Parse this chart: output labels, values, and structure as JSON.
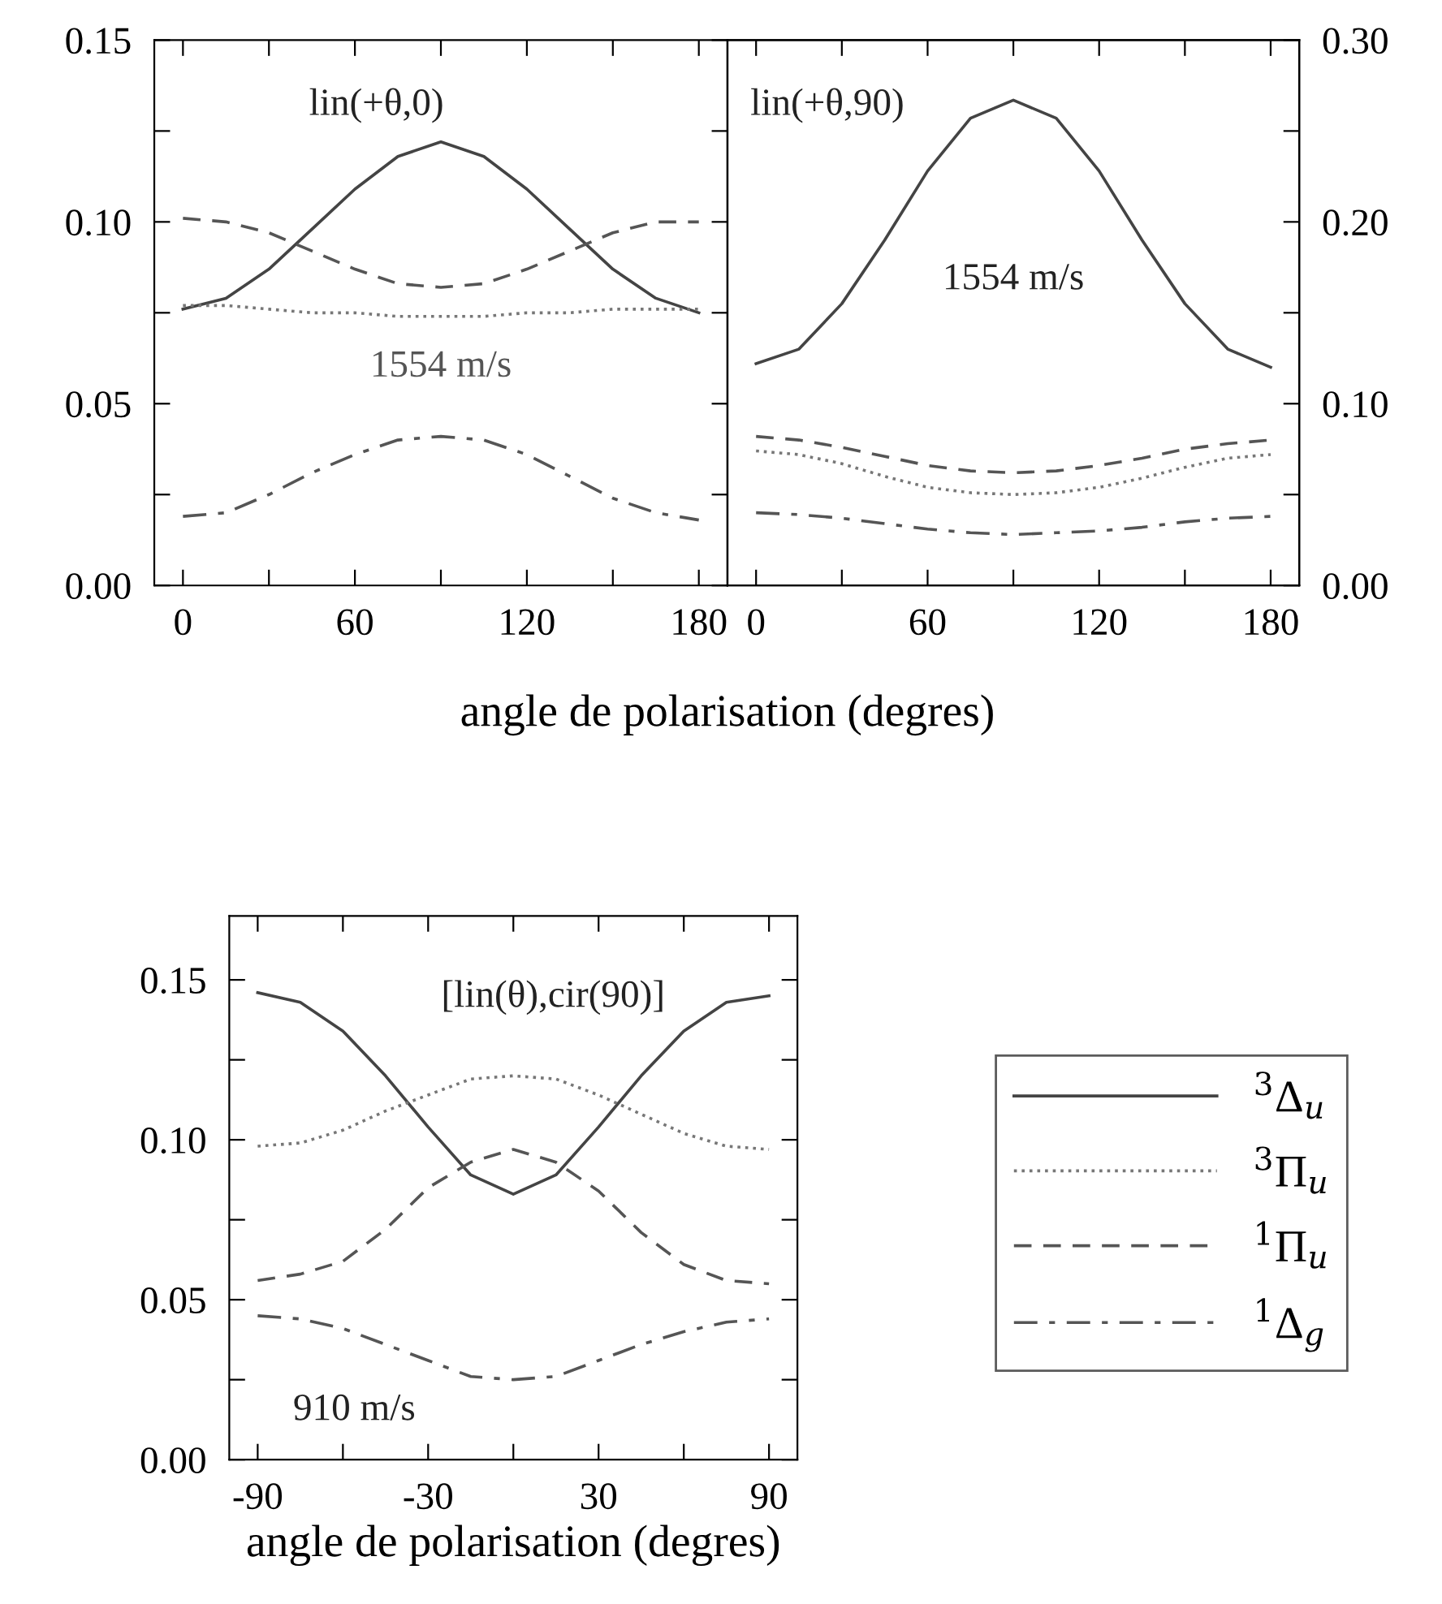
{
  "chart_data": [
    {
      "type": "line",
      "xlabel": "angle de polarisation (degres)",
      "annotations": [
        "lin(+θ,0)",
        "1554 m/s"
      ],
      "x": [
        0,
        15,
        30,
        45,
        60,
        75,
        90,
        105,
        120,
        135,
        150,
        165,
        180
      ],
      "xlim": [
        -10,
        190
      ],
      "xticks": [
        0,
        {
          "value": 30,
          "label": null
        },
        60,
        {
          "value": 90,
          "label": null
        },
        120,
        {
          "value": 150,
          "label": null
        },
        180
      ],
      "ylim": [
        0,
        0.15
      ],
      "yticks": [
        {
          "value": 0,
          "label": "0.00"
        },
        {
          "value": 0.025,
          "label": null
        },
        {
          "value": 0.05,
          "label": "0.05"
        },
        {
          "value": 0.075,
          "label": null
        },
        {
          "value": 0.1,
          "label": "0.10"
        },
        {
          "value": 0.125,
          "label": null
        },
        {
          "value": 0.15,
          "label": "0.15"
        }
      ],
      "series": [
        {
          "color": "#444444",
          "line_style": "solid",
          "values": [
            0.076,
            0.079,
            0.087,
            0.098,
            0.109,
            0.118,
            0.122,
            0.118,
            0.109,
            0.098,
            0.087,
            0.079,
            0.075
          ]
        },
        {
          "color": "#777777",
          "line_style": "dotted",
          "values": [
            0.077,
            0.077,
            0.076,
            0.075,
            0.075,
            0.074,
            0.074,
            0.074,
            0.075,
            0.075,
            0.076,
            0.076,
            0.076
          ]
        },
        {
          "color": "#555555",
          "line_style": "dashed",
          "values": [
            0.101,
            0.1,
            0.097,
            0.092,
            0.087,
            0.083,
            0.082,
            0.083,
            0.087,
            0.092,
            0.097,
            0.1,
            0.1
          ]
        },
        {
          "color": "#555555",
          "line_style": "dashdot",
          "values": [
            0.019,
            0.02,
            0.025,
            0.031,
            0.036,
            0.04,
            0.041,
            0.04,
            0.036,
            0.03,
            0.024,
            0.02,
            0.018
          ]
        }
      ]
    },
    {
      "type": "line",
      "annotations": [
        "lin(+θ,90)",
        "1554 m/s"
      ],
      "x": [
        0,
        15,
        30,
        45,
        60,
        75,
        90,
        105,
        120,
        135,
        150,
        165,
        180
      ],
      "xlim": [
        -10,
        190
      ],
      "xticks": [
        0,
        {
          "value": 30,
          "label": null
        },
        60,
        {
          "value": 90,
          "label": null
        },
        120,
        {
          "value": 150,
          "label": null
        },
        180
      ],
      "y2lim": [
        0,
        0.3
      ],
      "y2ticks": [
        {
          "value": 0,
          "label": "0.00"
        },
        {
          "value": 0.05,
          "label": null
        },
        {
          "value": 0.1,
          "label": "0.10"
        },
        {
          "value": 0.15,
          "label": null
        },
        {
          "value": 0.2,
          "label": "0.20"
        },
        {
          "value": 0.25,
          "label": null
        },
        {
          "value": 0.3,
          "label": "0.30"
        }
      ],
      "series": [
        {
          "color": "#444444",
          "line_style": "solid",
          "axis": "y2",
          "values": [
            0.122,
            0.13,
            0.155,
            0.19,
            0.228,
            0.257,
            0.267,
            0.257,
            0.228,
            0.19,
            0.155,
            0.13,
            0.12
          ]
        },
        {
          "color": "#777777",
          "line_style": "dotted",
          "axis": "y2",
          "values": [
            0.074,
            0.072,
            0.067,
            0.06,
            0.054,
            0.051,
            0.05,
            0.051,
            0.054,
            0.059,
            0.065,
            0.07,
            0.072
          ]
        },
        {
          "color": "#555555",
          "line_style": "dashed",
          "axis": "y2",
          "values": [
            0.082,
            0.08,
            0.076,
            0.071,
            0.066,
            0.063,
            0.062,
            0.063,
            0.066,
            0.07,
            0.075,
            0.078,
            0.08
          ]
        },
        {
          "color": "#555555",
          "line_style": "dashdot",
          "axis": "y2",
          "values": [
            0.04,
            0.039,
            0.037,
            0.034,
            0.031,
            0.029,
            0.028,
            0.029,
            0.03,
            0.032,
            0.035,
            0.037,
            0.038
          ]
        }
      ]
    },
    {
      "type": "line",
      "xlabel": "angle de polarisation (degres)",
      "annotations": [
        "[lin(θ),cir(90)]",
        "910 m/s"
      ],
      "legend": "right",
      "x": [
        -90,
        -75,
        -60,
        -45,
        -30,
        -15,
        0,
        15,
        30,
        45,
        60,
        75,
        90
      ],
      "xlim": [
        -100,
        100
      ],
      "xticks": [
        -90,
        {
          "value": -60,
          "label": null
        },
        -30,
        {
          "value": 0,
          "label": null
        },
        30,
        {
          "value": 60,
          "label": null
        },
        90
      ],
      "ylim": [
        0,
        0.17
      ],
      "yticks": [
        {
          "value": 0,
          "label": "0.00"
        },
        {
          "value": 0.025,
          "label": null
        },
        {
          "value": 0.05,
          "label": "0.05"
        },
        {
          "value": 0.075,
          "label": null
        },
        {
          "value": 0.1,
          "label": "0.10"
        },
        {
          "value": 0.125,
          "label": null
        },
        {
          "value": 0.15,
          "label": "0.15"
        }
      ],
      "series": [
        {
          "name": "$^{3}$Δ$_{u}$",
          "color": "#444444",
          "line_style": "solid",
          "values": [
            0.146,
            0.143,
            0.134,
            0.12,
            0.104,
            0.089,
            0.083,
            0.089,
            0.104,
            0.12,
            0.134,
            0.143,
            0.145
          ]
        },
        {
          "name": "$^{3}$Π$_{u}$",
          "color": "#777777",
          "line_style": "dotted",
          "values": [
            0.098,
            0.099,
            0.103,
            0.109,
            0.114,
            0.119,
            0.12,
            0.119,
            0.114,
            0.108,
            0.102,
            0.098,
            0.097
          ]
        },
        {
          "name": "$^{1}$Π$_{u}$",
          "color": "#555555",
          "line_style": "dashed",
          "values": [
            0.056,
            0.058,
            0.062,
            0.072,
            0.085,
            0.093,
            0.097,
            0.093,
            0.084,
            0.071,
            0.061,
            0.056,
            0.055
          ]
        },
        {
          "name": "$^{1}$Δ$_{g}$",
          "color": "#555555",
          "line_style": "dashdot",
          "values": [
            0.045,
            0.044,
            0.041,
            0.036,
            0.031,
            0.026,
            0.025,
            0.026,
            0.031,
            0.036,
            0.04,
            0.043,
            0.044
          ]
        }
      ]
    }
  ]
}
